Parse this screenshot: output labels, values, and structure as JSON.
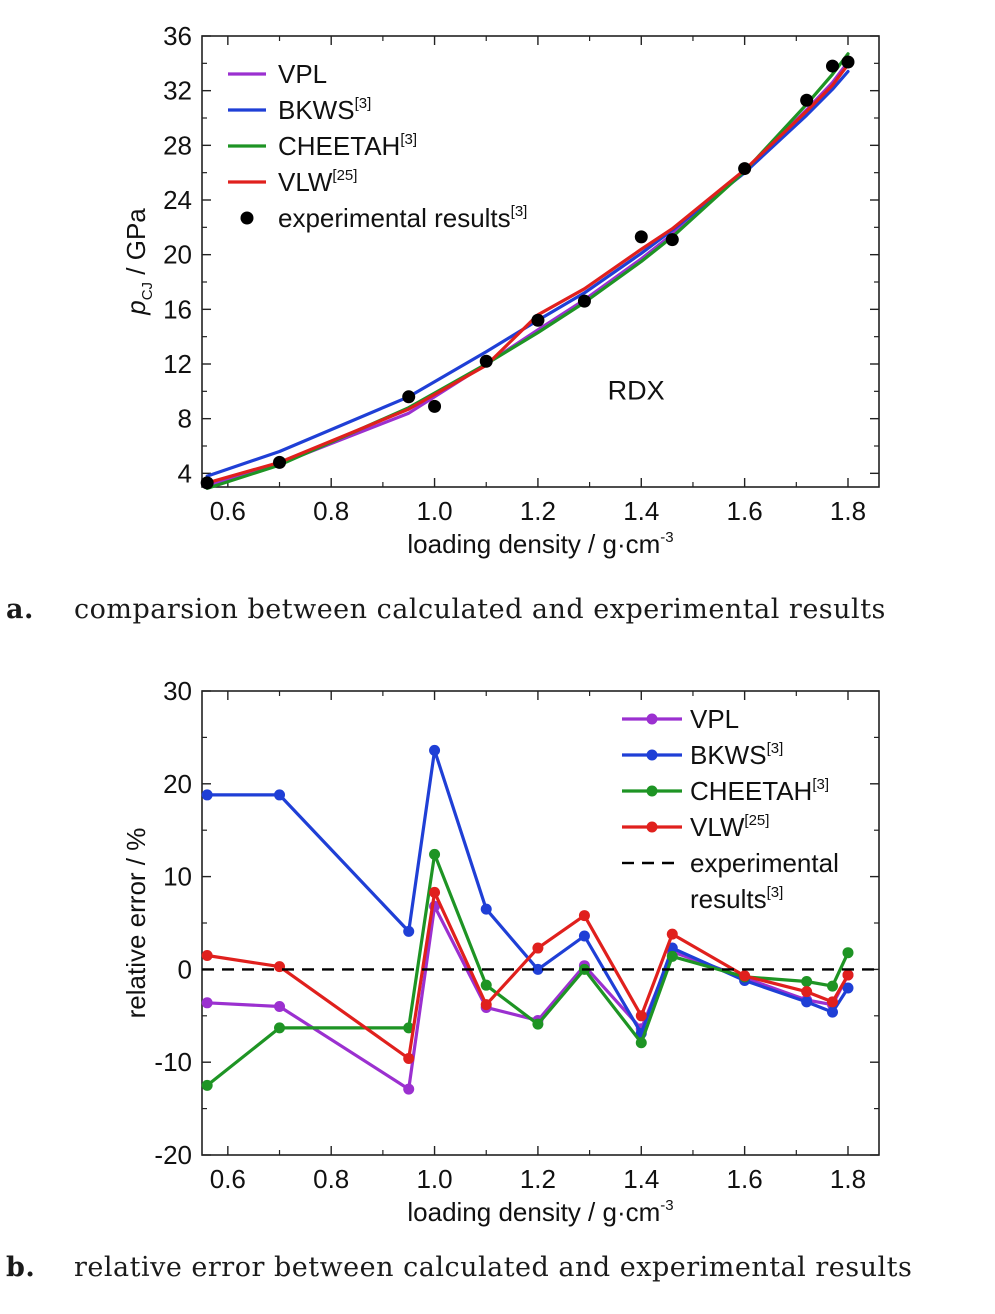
{
  "captions": {
    "a_letter": "a.",
    "a_text": "comparsion between calculated and experimental results",
    "b_letter": "b.",
    "b_text": "relative error between calculated and experimental results"
  },
  "chart_data": [
    {
      "type": "line",
      "xlabel": "loading density / g·cm",
      "xlabel_sup": "-3",
      "ylabel_var": "p",
      "ylabel_sub": "CJ",
      "ylabel_unit": " / GPa",
      "annotation": "RDX",
      "xlim": [
        0.55,
        1.86
      ],
      "ylim": [
        3,
        36
      ],
      "xticks": [
        0.6,
        0.8,
        1.0,
        1.2,
        1.4,
        1.6,
        1.8
      ],
      "xtick_labels": [
        "0.6",
        "0.8",
        "1.0",
        "1.2",
        "1.4",
        "1.6",
        "1.8"
      ],
      "yticks": [
        4,
        8,
        12,
        16,
        20,
        24,
        28,
        32,
        36
      ],
      "ytick_labels": [
        "4",
        "8",
        "12",
        "16",
        "20",
        "24",
        "28",
        "32",
        "36"
      ],
      "legend_position": "top-left",
      "series": [
        {
          "name": "VPL",
          "sup": "",
          "color": "#9b30d0",
          "kind": "line",
          "x": [
            0.56,
            0.7,
            0.95,
            1.1,
            1.2,
            1.29,
            1.4,
            1.46,
            1.6,
            1.72,
            1.77,
            1.8
          ],
          "y": [
            3.1,
            4.7,
            8.4,
            12.0,
            14.5,
            16.7,
            19.7,
            21.5,
            26.1,
            30.6,
            32.6,
            34.1
          ]
        },
        {
          "name": "BKWS",
          "sup": "[3]",
          "color": "#1f3fd6",
          "kind": "line",
          "x": [
            0.56,
            0.7,
            0.95,
            1.1,
            1.2,
            1.29,
            1.4,
            1.46,
            1.6,
            1.72,
            1.77,
            1.8
          ],
          "y": [
            3.8,
            5.6,
            9.6,
            12.9,
            15.2,
            17.2,
            20.1,
            21.8,
            26.0,
            30.2,
            32.1,
            33.4
          ]
        },
        {
          "name": "CHEETAH",
          "sup": "[3]",
          "color": "#1e9424",
          "kind": "line",
          "x": [
            0.56,
            0.7,
            0.95,
            1.1,
            1.2,
            1.29,
            1.4,
            1.46,
            1.6,
            1.72,
            1.77,
            1.8
          ],
          "y": [
            2.9,
            4.6,
            8.8,
            12.0,
            14.3,
            16.5,
            19.5,
            21.3,
            26.1,
            31.0,
            33.2,
            34.7
          ]
        },
        {
          "name": "VLW",
          "sup": "[25]",
          "color": "#e0201d",
          "kind": "line",
          "x": [
            0.56,
            0.7,
            0.95,
            1.1,
            1.2,
            1.29,
            1.4,
            1.46,
            1.6,
            1.72,
            1.77,
            1.8
          ],
          "y": [
            3.3,
            4.8,
            8.7,
            11.9,
            15.6,
            17.5,
            20.4,
            21.9,
            26.2,
            30.5,
            32.4,
            33.9
          ]
        },
        {
          "name": "experimental results",
          "sup": "[3]",
          "color": "#000000",
          "kind": "points",
          "x": [
            0.56,
            0.7,
            0.95,
            1.0,
            1.1,
            1.2,
            1.29,
            1.4,
            1.46,
            1.6,
            1.72,
            1.77,
            1.8
          ],
          "y": [
            3.3,
            4.8,
            9.6,
            8.9,
            12.2,
            15.2,
            16.6,
            21.3,
            21.1,
            26.3,
            31.3,
            33.8,
            34.1
          ]
        }
      ]
    },
    {
      "type": "line",
      "xlabel": "loading density / g·cm",
      "xlabel_sup": "-3",
      "ylabel": "relative error / %",
      "xlim": [
        0.55,
        1.86
      ],
      "ylim": [
        -20,
        30
      ],
      "xticks": [
        0.6,
        0.8,
        1.0,
        1.2,
        1.4,
        1.6,
        1.8
      ],
      "xtick_labels": [
        "0.6",
        "0.8",
        "1.0",
        "1.2",
        "1.4",
        "1.6",
        "1.8"
      ],
      "yticks": [
        -20,
        -10,
        0,
        10,
        20,
        30
      ],
      "ytick_labels": [
        "-20",
        "-10",
        "0",
        "10",
        "20",
        "30"
      ],
      "legend_position": "top-right",
      "series": [
        {
          "name": "VPL",
          "sup": "",
          "color": "#9b30d0",
          "kind": "line-points",
          "x": [
            0.56,
            0.7,
            0.95,
            1.0,
            1.1,
            1.2,
            1.29,
            1.4,
            1.46,
            1.6,
            1.72,
            1.77,
            1.8
          ],
          "y": [
            -3.6,
            -4.0,
            -12.9,
            6.8,
            -4.1,
            -5.5,
            0.4,
            -6.4,
            1.9,
            -0.9,
            -3.3,
            -3.8,
            -0.6
          ]
        },
        {
          "name": "BKWS",
          "sup": "[3]",
          "color": "#1f3fd6",
          "kind": "line-points",
          "x": [
            0.56,
            0.7,
            0.95,
            1.0,
            1.1,
            1.2,
            1.29,
            1.4,
            1.46,
            1.6,
            1.72,
            1.77,
            1.8
          ],
          "y": [
            18.8,
            18.8,
            4.1,
            23.6,
            6.5,
            0.0,
            3.6,
            -6.9,
            2.3,
            -1.2,
            -3.5,
            -4.6,
            -2.0
          ]
        },
        {
          "name": "CHEETAH",
          "sup": "[3]",
          "color": "#1e9424",
          "kind": "line-points",
          "x": [
            0.56,
            0.7,
            0.95,
            1.0,
            1.1,
            1.2,
            1.29,
            1.4,
            1.46,
            1.6,
            1.72,
            1.77,
            1.8
          ],
          "y": [
            -12.5,
            -6.3,
            -6.3,
            12.4,
            -1.7,
            -5.9,
            0.0,
            -7.9,
            1.4,
            -0.8,
            -1.3,
            -1.8,
            1.8
          ]
        },
        {
          "name": "VLW",
          "sup": "[25]",
          "color": "#e0201d",
          "kind": "line-points",
          "x": [
            0.56,
            0.7,
            0.95,
            1.0,
            1.1,
            1.2,
            1.29,
            1.4,
            1.46,
            1.6,
            1.72,
            1.77,
            1.8
          ],
          "y": [
            1.5,
            0.3,
            -9.6,
            8.3,
            -3.8,
            2.3,
            5.8,
            -5.0,
            3.8,
            -0.7,
            -2.4,
            -3.5,
            -0.6
          ]
        },
        {
          "name": "experimental results",
          "sup": "[3]",
          "color": "#000000",
          "kind": "dashed",
          "x": [
            0.55,
            1.86
          ],
          "y": [
            0,
            0
          ]
        }
      ]
    }
  ]
}
